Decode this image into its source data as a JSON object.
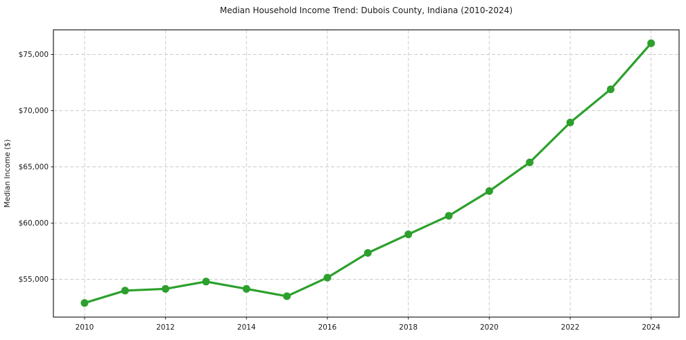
{
  "chart_data": {
    "type": "line",
    "title": "Median Household Income Trend: Dubois County, Indiana (2010-2024)",
    "xlabel": "",
    "ylabel": "Median Income ($)",
    "series": [
      {
        "name": "Median Household Income",
        "x": [
          2010,
          2011,
          2012,
          2013,
          2014,
          2015,
          2016,
          2017,
          2018,
          2019,
          2020,
          2021,
          2022,
          2023,
          2024
        ],
        "values": [
          52900,
          54000,
          54150,
          54800,
          54150,
          53500,
          55150,
          57350,
          59000,
          60650,
          62850,
          65400,
          68950,
          71900,
          76000
        ]
      }
    ],
    "xlim": [
      2009.23,
      2024.69
    ],
    "ylim": [
      51640,
      77190
    ],
    "xticks": [
      2010,
      2012,
      2014,
      2016,
      2018,
      2020,
      2022,
      2024
    ],
    "xtick_labels": [
      "2010",
      "2012",
      "2014",
      "2016",
      "2018",
      "2020",
      "2022",
      "2024"
    ],
    "yticks": [
      55000,
      60000,
      65000,
      70000,
      75000
    ],
    "ytick_labels": [
      "$55,000",
      "$60,000",
      "$65,000",
      "$70,000",
      "$75,000"
    ],
    "grid": true,
    "grid_style": "dashed",
    "legend": "none",
    "line_color": "#2ca02c",
    "marker": "circle",
    "marker_color": "#2ca02c",
    "background_color": "#ffffff"
  }
}
